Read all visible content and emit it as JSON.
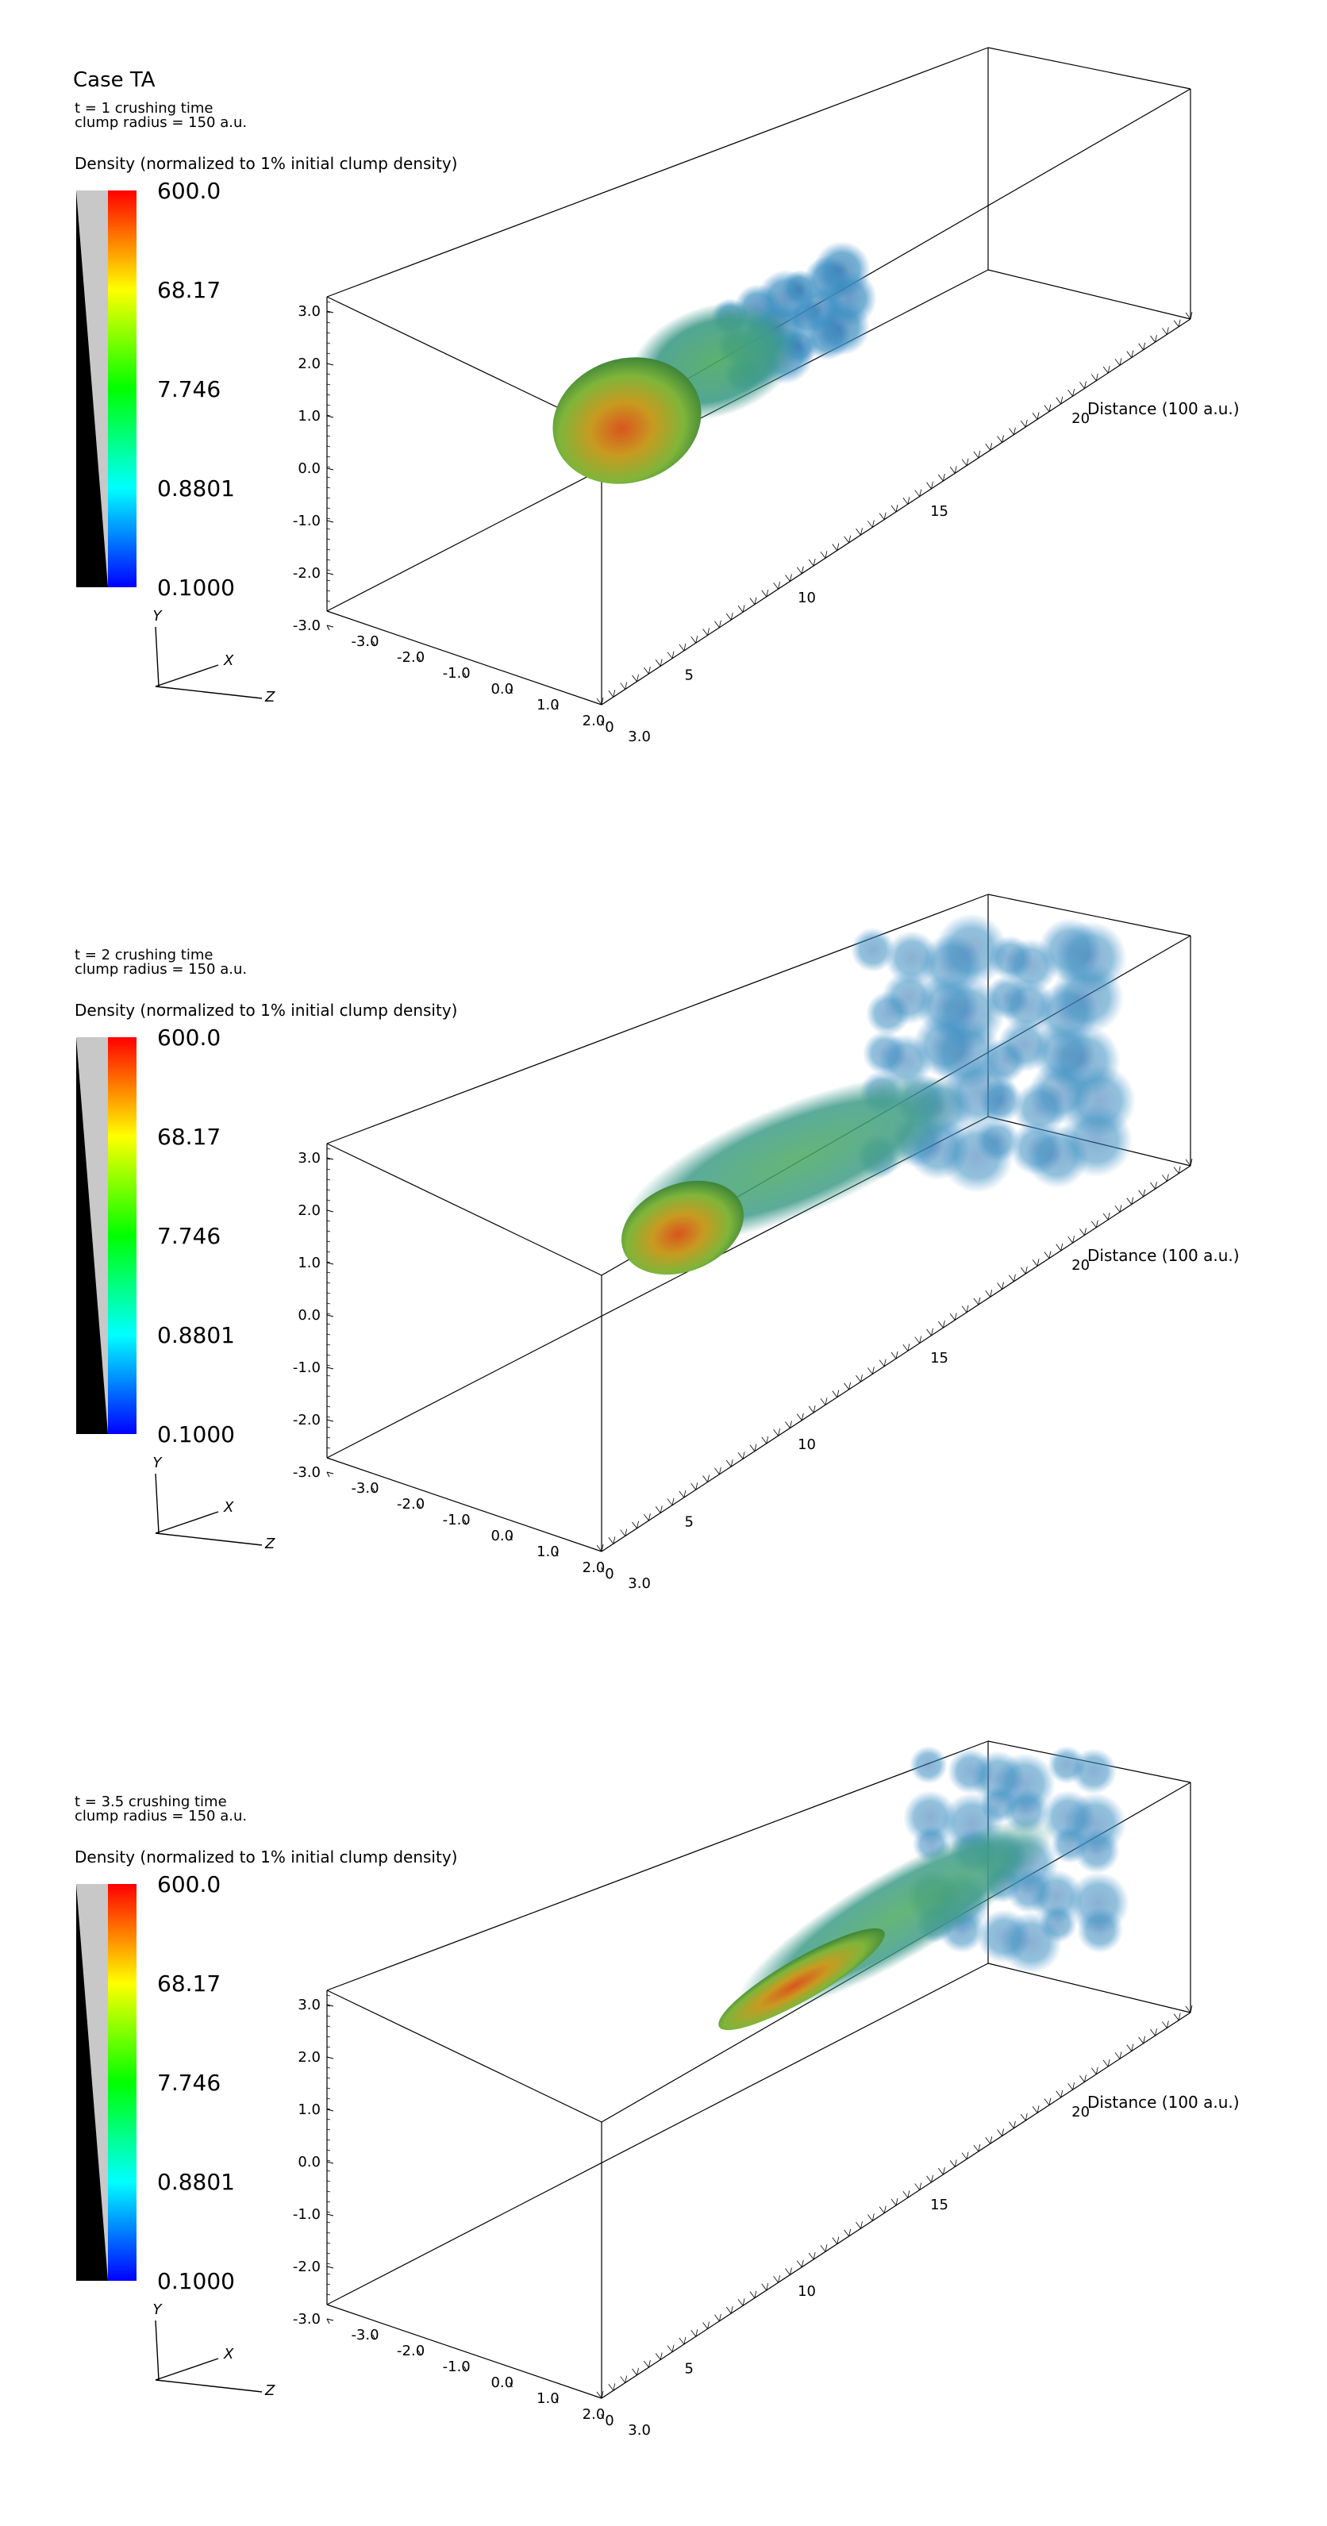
{
  "figure_title": "Case TA",
  "colorbar": {
    "title": "Density (normalized to 1% initial clump density)",
    "ticks": [
      "600.0",
      "68.17",
      "7.746",
      "0.8801",
      "0.1000"
    ],
    "colors": [
      "#ff0000",
      "#ffff00",
      "#00ff00",
      "#00ffff",
      "#0000ff"
    ]
  },
  "axes": {
    "orientation_labels": [
      "Y",
      "X",
      "Z"
    ],
    "vertical_ticks": [
      "3.0",
      "2.0",
      "1.0",
      "0.0",
      "-1.0",
      "-2.0",
      "-3.0"
    ],
    "depth_ticks": [
      "-3.0",
      "-2.0",
      "-1.0",
      "0.0",
      "1.0",
      "2.0",
      "3.0"
    ],
    "distance_label": "Distance (100 a.u.)",
    "distance_ticks": [
      "0",
      "5",
      "10",
      "15",
      "20"
    ]
  },
  "panels": [
    {
      "time_text": "t = 1 crushing time",
      "radius_text": "clump radius = 150 a.u.",
      "stage": 1
    },
    {
      "time_text": "t = 2 crushing time",
      "radius_text": "clump radius = 150 a.u.",
      "stage": 2
    },
    {
      "time_text": "t = 3.5 crushing time",
      "radius_text": "clump radius = 150 a.u.",
      "stage": 3
    }
  ]
}
